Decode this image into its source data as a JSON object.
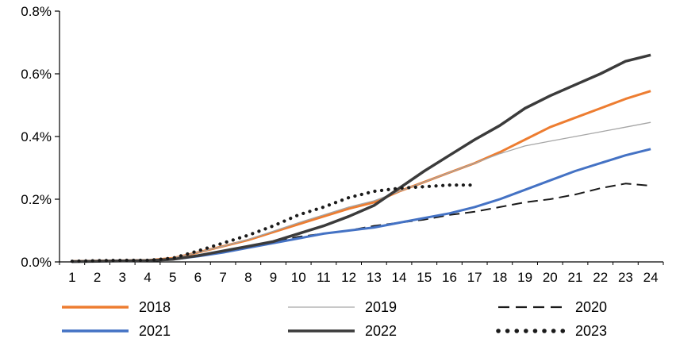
{
  "chart_data": {
    "type": "line",
    "title": "",
    "xlabel": "",
    "ylabel": "",
    "grid": false,
    "legend_position": "bottom",
    "ylim": [
      0,
      0.8
    ],
    "yticks": [
      {
        "value": 0.0,
        "label": "0.0%"
      },
      {
        "value": 0.2,
        "label": "0.2%"
      },
      {
        "value": 0.4,
        "label": "0.4%"
      },
      {
        "value": 0.6,
        "label": "0.6%"
      },
      {
        "value": 0.8,
        "label": "0.8%"
      }
    ],
    "x": [
      1,
      2,
      3,
      4,
      5,
      6,
      7,
      8,
      9,
      10,
      11,
      12,
      13,
      14,
      15,
      16,
      17,
      18,
      19,
      20,
      21,
      22,
      23,
      24
    ],
    "value_unit": "percent",
    "series": [
      {
        "name": "2018",
        "color": "#ED7D31",
        "style": "solid",
        "width": 3,
        "values": [
          0.002,
          0.003,
          0.004,
          0.005,
          0.012,
          0.03,
          0.05,
          0.07,
          0.095,
          0.12,
          0.145,
          0.17,
          0.19,
          0.225,
          0.255,
          0.285,
          0.315,
          0.35,
          0.39,
          0.43,
          0.46,
          0.49,
          0.52,
          0.545
        ]
      },
      {
        "name": "2019",
        "color": "#A6A6A6",
        "style": "solid",
        "width": 1.3,
        "values": [
          0.002,
          0.003,
          0.004,
          0.005,
          0.012,
          0.03,
          0.05,
          0.072,
          0.098,
          0.125,
          0.15,
          0.175,
          0.195,
          0.225,
          0.255,
          0.285,
          0.315,
          0.345,
          0.37,
          0.385,
          0.4,
          0.415,
          0.43,
          0.445
        ]
      },
      {
        "name": "2020",
        "color": "#1a1a1a",
        "style": "dashed",
        "width": 2,
        "values": [
          0.001,
          0.002,
          0.003,
          0.004,
          0.008,
          0.02,
          0.035,
          0.05,
          0.065,
          0.08,
          0.09,
          0.1,
          0.115,
          0.125,
          0.135,
          0.15,
          0.16,
          0.175,
          0.19,
          0.2,
          0.215,
          0.235,
          0.25,
          0.243
        ]
      },
      {
        "name": "2021",
        "color": "#4472C4",
        "style": "solid",
        "width": 3,
        "values": [
          0.001,
          0.002,
          0.003,
          0.004,
          0.008,
          0.018,
          0.03,
          0.045,
          0.06,
          0.075,
          0.09,
          0.1,
          0.11,
          0.125,
          0.14,
          0.155,
          0.175,
          0.2,
          0.23,
          0.26,
          0.29,
          0.315,
          0.34,
          0.36
        ]
      },
      {
        "name": "2022",
        "color": "#3b3b3b",
        "style": "solid",
        "width": 3.5,
        "values": [
          0.001,
          0.002,
          0.003,
          0.004,
          0.008,
          0.02,
          0.035,
          0.05,
          0.065,
          0.09,
          0.115,
          0.145,
          0.18,
          0.235,
          0.29,
          0.34,
          0.39,
          0.435,
          0.49,
          0.53,
          0.565,
          0.6,
          0.64,
          0.66
        ]
      },
      {
        "name": "2023",
        "color": "#1a1a1a",
        "style": "dotted",
        "width": 4.2,
        "values": [
          0.002,
          0.004,
          0.005,
          0.005,
          0.012,
          0.035,
          0.06,
          0.085,
          0.115,
          0.15,
          0.175,
          0.205,
          0.225,
          0.235,
          0.24,
          0.245,
          0.245,
          null,
          null,
          null,
          null,
          null,
          null,
          null
        ]
      }
    ]
  }
}
